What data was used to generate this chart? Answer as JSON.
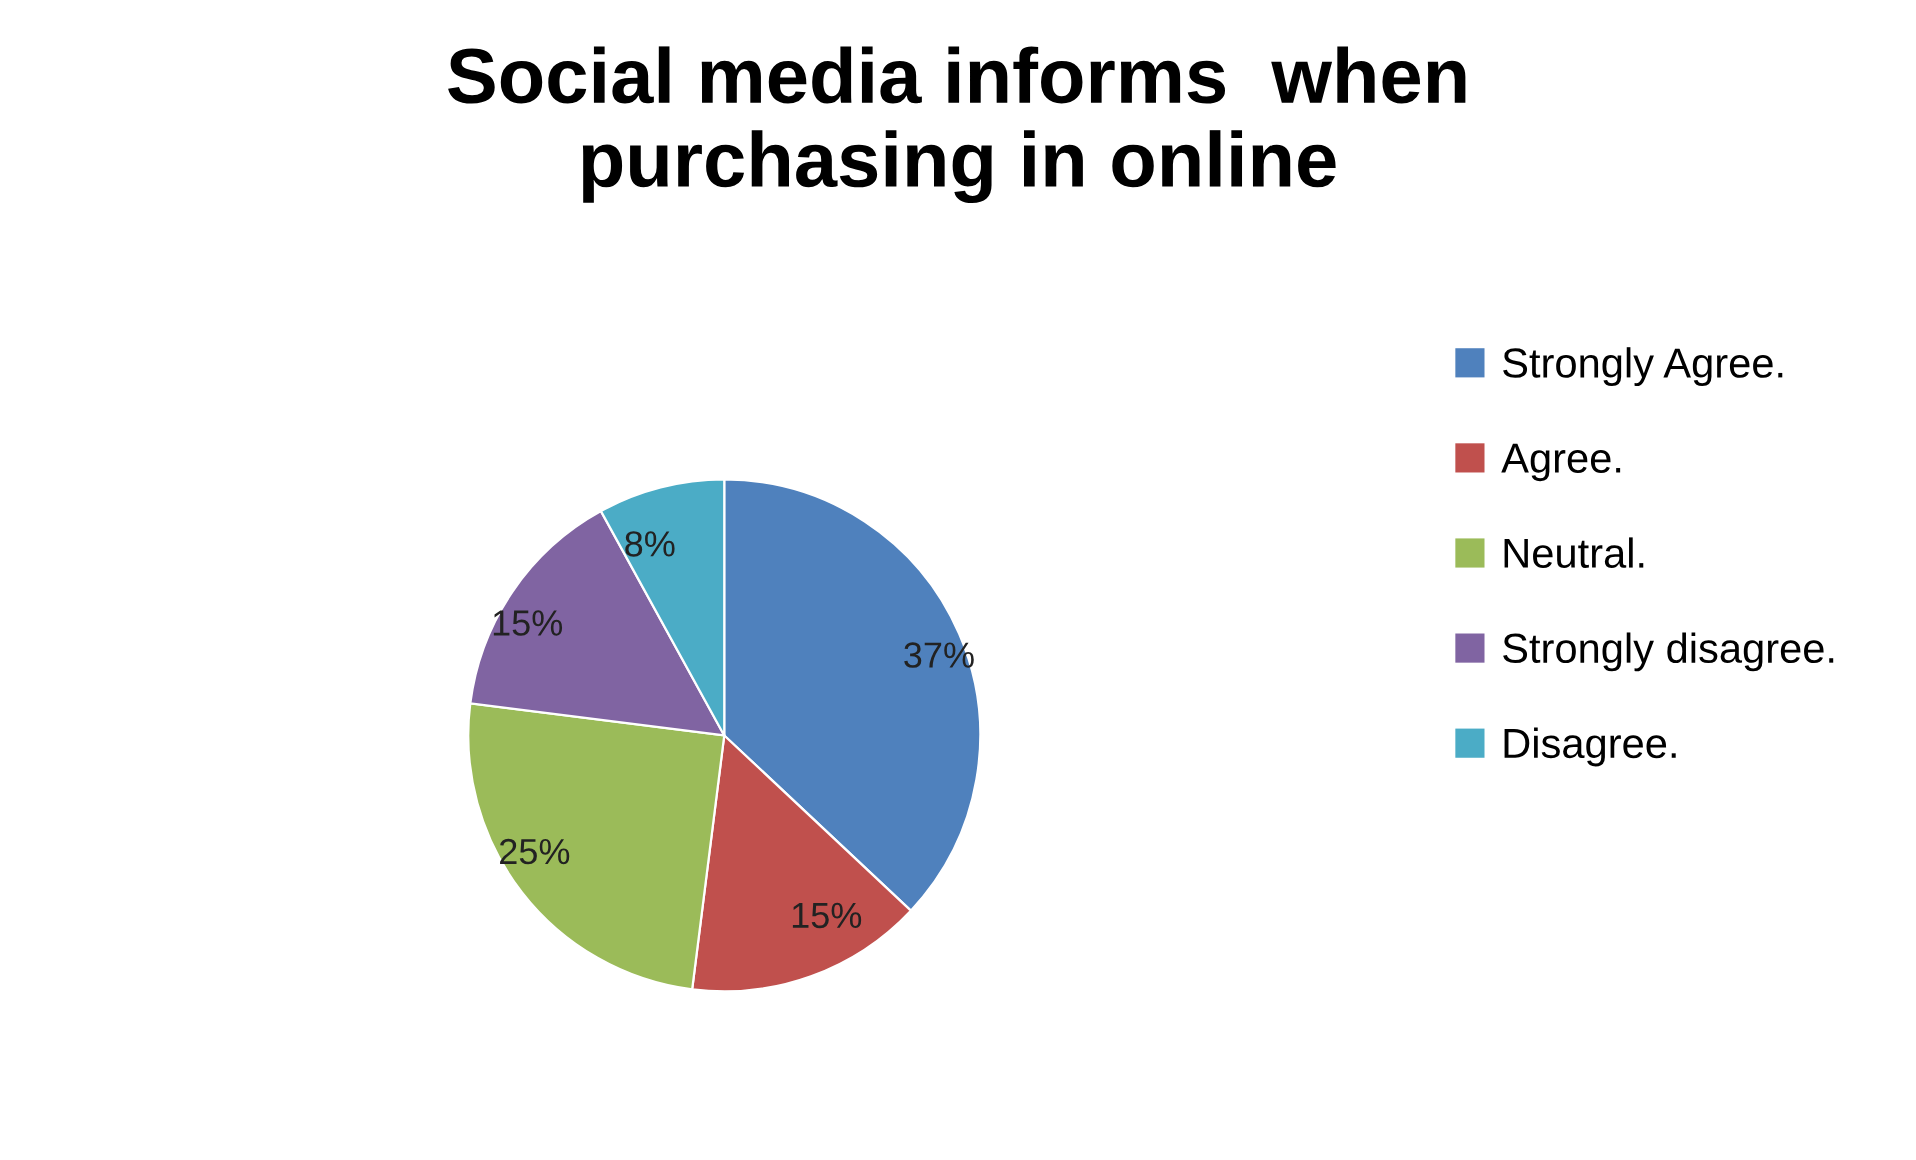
{
  "chart_data": {
    "type": "pie",
    "title": "Social media informs  when\npurchasing in online",
    "categories": [
      "Strongly Agree.",
      "Agree.",
      "Neutral.",
      "Strongly disagree.",
      "Disagree."
    ],
    "values": [
      37,
      15,
      25,
      15,
      8
    ],
    "colors": [
      "#4f81bd",
      "#c0504d",
      "#9bbb59",
      "#8064a2",
      "#4bacc6"
    ],
    "value_labels": [
      "37%",
      "15%",
      "25%",
      "15%",
      "8%"
    ],
    "legend": "right"
  }
}
